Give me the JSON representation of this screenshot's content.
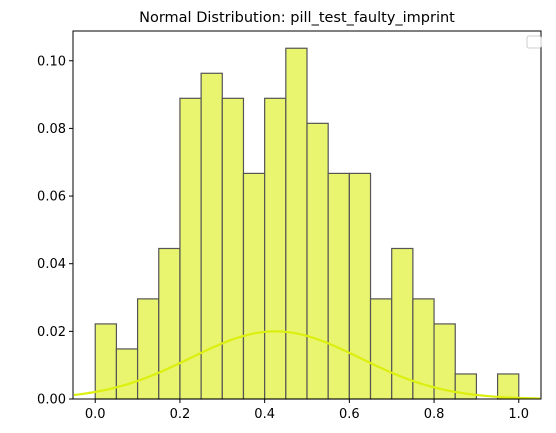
{
  "chart_data": {
    "type": "bar",
    "title": "Normal Distribution: pill_test_faulty_imprint",
    "xlabel": "",
    "ylabel": "",
    "xlim": [
      -0.0525,
      1.0525
    ],
    "ylim": [
      0,
      0.1088
    ],
    "grid": false,
    "legend": "top-right",
    "x_ticks": [
      0.0,
      0.2,
      0.4,
      0.6,
      0.8,
      1.0
    ],
    "x_tick_labels": [
      "0.0",
      "0.2",
      "0.4",
      "0.6",
      "0.8",
      "1.0"
    ],
    "y_ticks": [
      0.0,
      0.02,
      0.04,
      0.06,
      0.08,
      0.1
    ],
    "y_tick_labels": [
      "0.00",
      "0.02",
      "0.04",
      "0.06",
      "0.08",
      "0.10"
    ],
    "histogram": {
      "bin_edges": [
        0.0,
        0.05,
        0.1,
        0.15,
        0.2,
        0.25,
        0.3,
        0.35,
        0.4,
        0.45,
        0.5,
        0.55,
        0.6,
        0.65,
        0.7,
        0.75,
        0.8,
        0.85,
        0.9,
        0.95,
        1.0
      ],
      "values": [
        0.0222,
        0.0148,
        0.0296,
        0.0445,
        0.0889,
        0.0963,
        0.0889,
        0.0667,
        0.0889,
        0.1037,
        0.0815,
        0.0667,
        0.0667,
        0.0296,
        0.0445,
        0.0296,
        0.0222,
        0.0074,
        0.0,
        0.0074
      ],
      "fill_color": "#e9f56e",
      "edge_color": "#555555"
    },
    "curve": {
      "type": "normal-pdf-scaled",
      "mean": 0.425,
      "std": 0.2,
      "peak": 0.02,
      "x_range": [
        -0.05,
        1.05
      ],
      "color": "#dcef0e"
    }
  }
}
